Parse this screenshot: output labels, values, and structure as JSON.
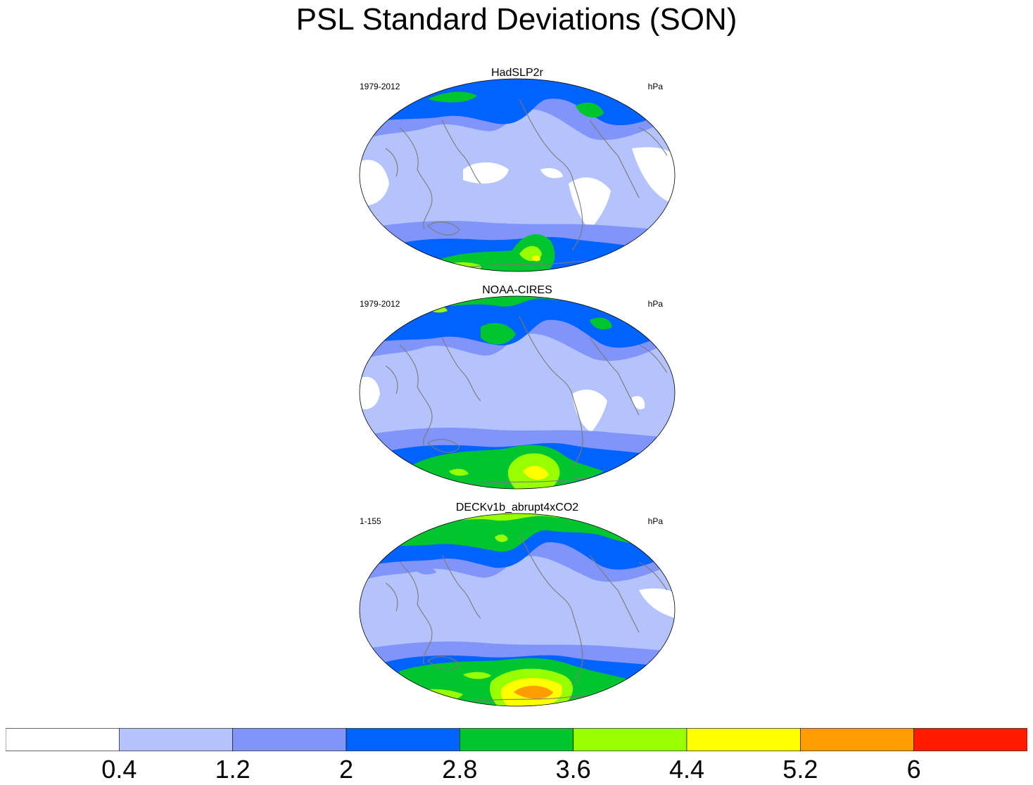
{
  "title": "PSL Standard Deviations (SON)",
  "colors": {
    "c0": "#ffffff",
    "c1": "#b4c3fc",
    "c2": "#8094fa",
    "c3": "#0062ff",
    "c4": "#00c52e",
    "c5": "#97ff00",
    "c6": "#ffff00",
    "c7": "#ff9c00",
    "c8": "#ff1a00",
    "coast": "#7a7a7a"
  },
  "panels": [
    {
      "title": "HadSLP2r",
      "left": "1979-2012",
      "right": "hPa"
    },
    {
      "title": "NOAA-CIRES",
      "left": "1979-2012",
      "right": "hPa"
    },
    {
      "title": "DECKv1b_abrupt4xCO2",
      "left": "1-155",
      "right": "hPa"
    }
  ],
  "colorbar": {
    "labels": [
      "0.4",
      "1.2",
      "2",
      "2.8",
      "3.6",
      "4.4",
      "5.2",
      "6"
    ],
    "colors": [
      "#ffffff",
      "#b4c3fc",
      "#8094fa",
      "#0062ff",
      "#00c52e",
      "#97ff00",
      "#ffff00",
      "#ff9c00",
      "#ff1a00"
    ]
  }
}
